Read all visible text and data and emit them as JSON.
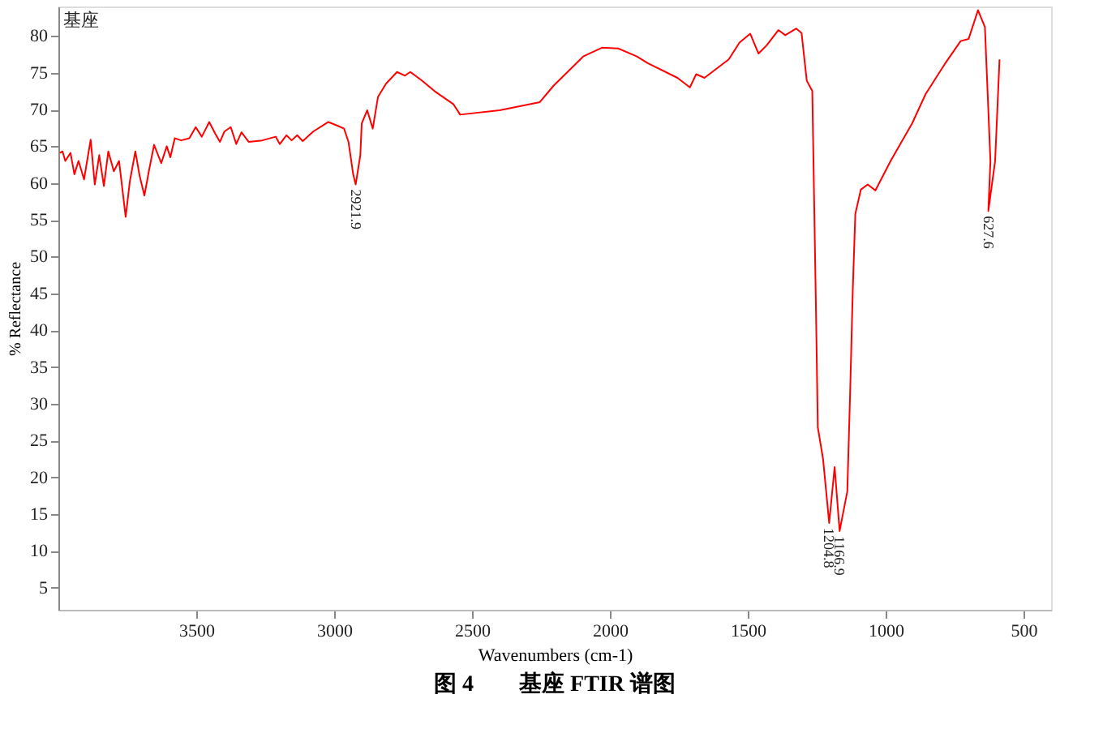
{
  "chart_data": {
    "type": "line",
    "title": "图 4　　基座 FTIR 谱图",
    "xlabel": "Wavenumbers (cm-1)",
    "ylabel": "% Reflectance",
    "xlim": [
      4000,
      400
    ],
    "xticks": [
      3500,
      3000,
      2500,
      2000,
      1500,
      1000,
      500
    ],
    "ylim": [
      2,
      84
    ],
    "yticks": [
      5,
      10,
      15,
      20,
      25,
      30,
      35,
      40,
      45,
      50,
      55,
      60,
      65,
      70,
      75,
      80
    ],
    "grid": false,
    "marker": "none",
    "line_style": "solid",
    "annotations": [
      "基座",
      {
        "text": "2921.9",
        "x": 2921.9,
        "y": 59.8
      },
      {
        "text": "1204.8",
        "x": 1204.8,
        "y": 13.8
      },
      {
        "text": "1166.9",
        "x": 1166.9,
        "y": 12.7
      },
      {
        "text": "627.6",
        "x": 627.6,
        "y": 56.2
      }
    ],
    "series": [
      {
        "color": "#ff0000",
        "x": [
          3995,
          3985,
          3975,
          3956,
          3942,
          3927,
          3907,
          3883,
          3868,
          3852,
          3835,
          3819,
          3799,
          3780,
          3756,
          3741,
          3721,
          3705,
          3688,
          3672,
          3653,
          3627,
          3607,
          3594,
          3578,
          3555,
          3525,
          3502,
          3480,
          3453,
          3431,
          3414,
          3398,
          3375,
          3355,
          3336,
          3310,
          3261,
          3212,
          3197,
          3173,
          3154,
          3134,
          3114,
          3076,
          3021,
          2988,
          2964,
          2948,
          2931,
          2921.9,
          2905,
          2900,
          2880,
          2860,
          2841,
          2812,
          2772,
          2743,
          2724,
          2684,
          2636,
          2567,
          2543,
          2400,
          2254,
          2205,
          2097,
          2029,
          1970,
          1902,
          1863,
          1755,
          1710,
          1687,
          1657,
          1569,
          1530,
          1491,
          1461,
          1432,
          1389,
          1364,
          1324,
          1305,
          1286,
          1266,
          1252,
          1246,
          1227,
          1204.8,
          1185,
          1166.9,
          1139,
          1129,
          1119,
          1110,
          1090,
          1065,
          1037,
          982,
          904,
          855,
          787,
          728,
          699,
          665,
          640,
          620,
          627.6,
          603,
          587
        ],
        "values": [
          64.1,
          64.3,
          63.0,
          64.1,
          61.2,
          63.0,
          60.5,
          65.9,
          59.8,
          63.8,
          59.6,
          64.3,
          61.6,
          63.0,
          55.4,
          60.2,
          64.3,
          60.9,
          58.3,
          61.6,
          65.2,
          62.7,
          65.0,
          63.5,
          66.1,
          65.8,
          66.1,
          67.6,
          66.3,
          68.3,
          66.7,
          65.6,
          67.0,
          67.6,
          65.3,
          66.9,
          65.6,
          65.8,
          66.3,
          65.3,
          66.5,
          65.8,
          66.5,
          65.7,
          67.0,
          68.3,
          67.8,
          67.4,
          65.6,
          61.2,
          59.8,
          63.8,
          68.1,
          69.9,
          67.4,
          71.7,
          73.5,
          75.1,
          74.6,
          75.1,
          74.0,
          72.5,
          70.7,
          69.3,
          69.9,
          71.0,
          73.2,
          77.2,
          78.4,
          78.3,
          77.2,
          76.3,
          74.3,
          73.0,
          74.8,
          74.3,
          76.8,
          79.1,
          80.3,
          77.6,
          78.7,
          80.8,
          80.1,
          81.0,
          80.4,
          73.9,
          72.5,
          41.3,
          26.8,
          22.5,
          13.8,
          21.4,
          12.7,
          18.1,
          31.2,
          45.7,
          55.8,
          59.1,
          59.8,
          59.0,
          63.0,
          68.1,
          72.1,
          76.1,
          79.3,
          79.6,
          83.5,
          81.2,
          63.0,
          56.2,
          63.0,
          76.8
        ]
      }
    ]
  }
}
